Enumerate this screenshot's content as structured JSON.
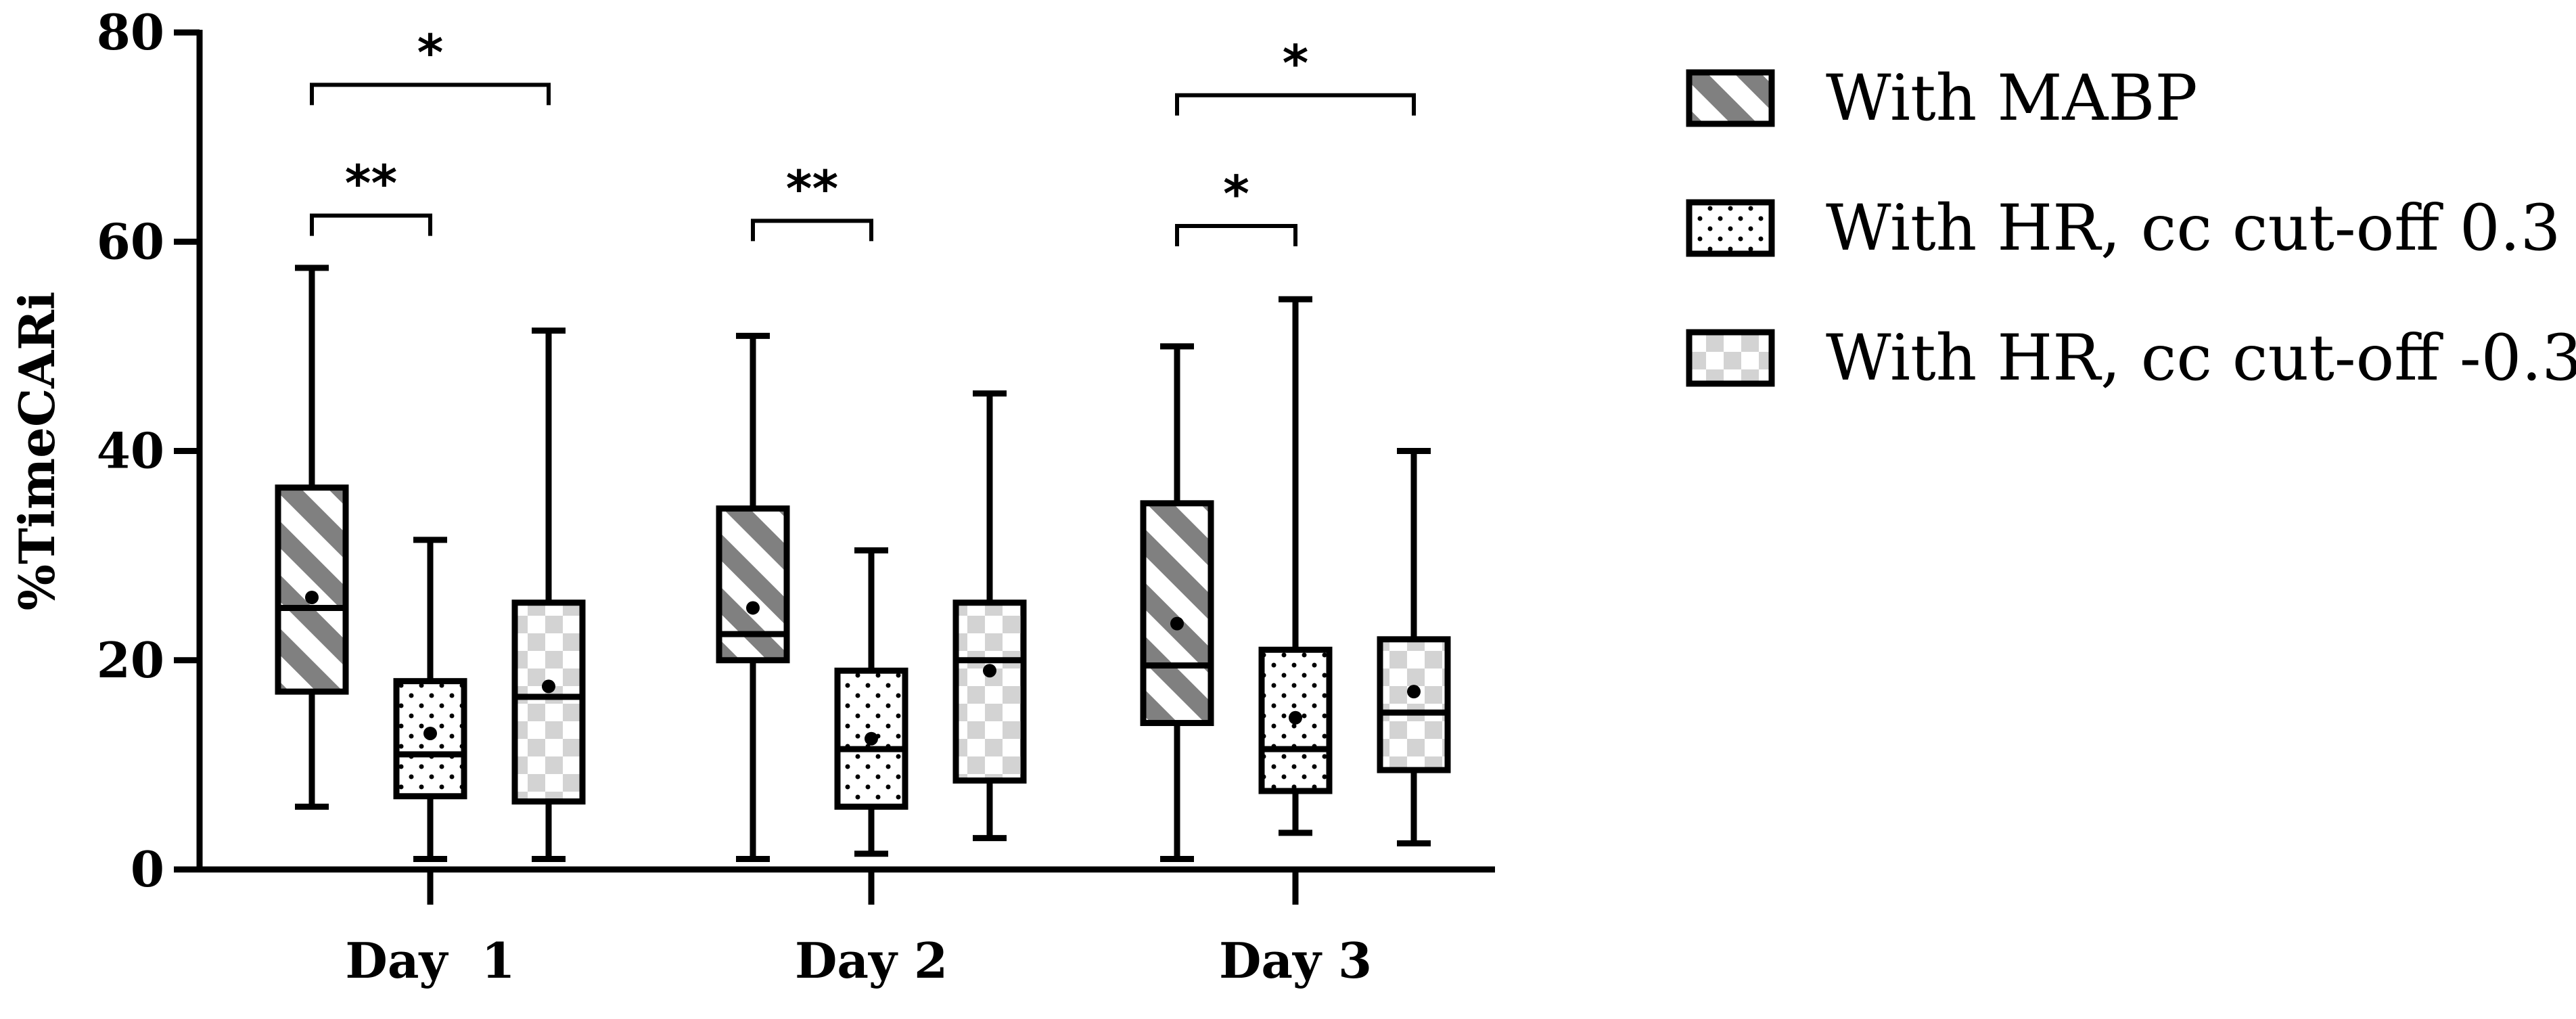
{
  "chart_data": {
    "type": "box",
    "title": "",
    "xlabel": "",
    "ylabel": "%TimeCARi",
    "ylim": [
      0,
      80
    ],
    "yticks": [
      0,
      20,
      40,
      60,
      80
    ],
    "categories": [
      "Day  1",
      "Day 2",
      "Day 3"
    ],
    "legend_position": "right",
    "series": [
      {
        "name": "With MABP",
        "pattern": "diagonal-stripes",
        "color": "#808080",
        "boxes": [
          {
            "min": 6,
            "q1": 17,
            "median": 25,
            "q3": 36.5,
            "max": 57.5,
            "mean": 26
          },
          {
            "min": 1,
            "q1": 20,
            "median": 22.5,
            "q3": 34.5,
            "max": 51,
            "mean": 25
          },
          {
            "min": 1,
            "q1": 14,
            "median": 19.5,
            "q3": 35,
            "max": 50,
            "mean": 23.5
          }
        ]
      },
      {
        "name": "With HR, cc cut-off 0.3",
        "pattern": "dots",
        "color": "#000000",
        "boxes": [
          {
            "min": 1,
            "q1": 7,
            "median": 11,
            "q3": 18,
            "max": 31.5,
            "mean": 13
          },
          {
            "min": 1.5,
            "q1": 6,
            "median": 11.5,
            "q3": 19,
            "max": 30.5,
            "mean": 12.5
          },
          {
            "min": 3.5,
            "q1": 7.5,
            "median": 11.5,
            "q3": 21,
            "max": 54.5,
            "mean": 14.5
          }
        ]
      },
      {
        "name": "With HR, cc cut-off -0.3",
        "pattern": "checkerboard",
        "color": "#d3d3d3",
        "boxes": [
          {
            "min": 1,
            "q1": 6.5,
            "median": 16.5,
            "q3": 25.5,
            "max": 51.5,
            "mean": 17.5
          },
          {
            "min": 3,
            "q1": 8.5,
            "median": 20,
            "q3": 25.5,
            "max": 45.5,
            "mean": 19
          },
          {
            "min": 2.5,
            "q1": 9.5,
            "median": 15,
            "q3": 22,
            "max": 40,
            "mean": 17
          }
        ]
      }
    ],
    "significance": [
      {
        "day": 0,
        "from": 0,
        "to": 2,
        "level": 75,
        "label": "*"
      },
      {
        "day": 0,
        "from": 0,
        "to": 1,
        "level": 62.5,
        "label": "**"
      },
      {
        "day": 1,
        "from": 0,
        "to": 1,
        "level": 62,
        "label": "**"
      },
      {
        "day": 2,
        "from": 0,
        "to": 2,
        "level": 74,
        "label": "*"
      },
      {
        "day": 2,
        "from": 0,
        "to": 1,
        "level": 61.5,
        "label": "*"
      }
    ]
  }
}
